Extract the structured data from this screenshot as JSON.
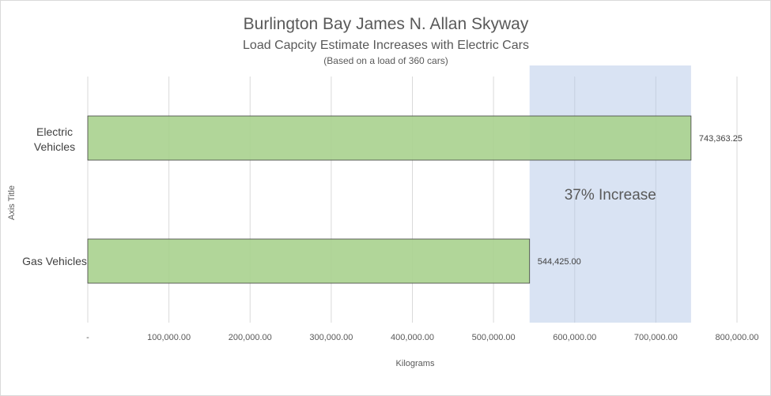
{
  "chart_data": {
    "type": "bar",
    "orientation": "horizontal",
    "title": "Burlington Bay James N. Allan Skyway",
    "subtitle": "Load Capcity Estimate Increases with Electric Cars",
    "subtitle2": "(Based on a load of 360 cars)",
    "xlabel": "Kilograms",
    "ylabel": "Axis Title",
    "xlim": [
      0,
      800000
    ],
    "x_ticks": [
      0,
      100000,
      200000,
      300000,
      400000,
      500000,
      600000,
      700000,
      800000
    ],
    "x_tick_labels": [
      "-",
      "100,000.00",
      "200,000.00",
      "300,000.00",
      "400,000.00",
      "500,000.00",
      "600,000.00",
      "700,000.00",
      "800,000.00"
    ],
    "categories": [
      "Electric Vehicles",
      "Gas Vehicles"
    ],
    "values": [
      743363.25,
      544425.0
    ],
    "data_labels": [
      "743,363.25",
      "544,425.00"
    ],
    "grid": true,
    "legend": "none",
    "highlight_region": {
      "from": 544425.0,
      "to": 743363.25,
      "label": "37% Increase"
    },
    "colors": {
      "bar": "#a9d18e",
      "bar_border": "#404040",
      "highlight": "#b4c7e7",
      "grid": "#d9d9d9",
      "text": "#595959"
    }
  }
}
